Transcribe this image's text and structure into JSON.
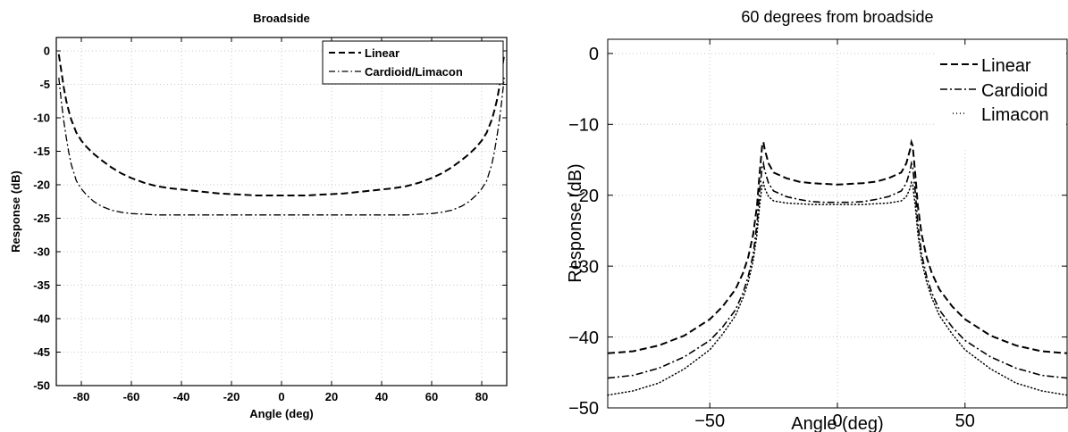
{
  "chart_data": [
    {
      "type": "line",
      "title": "Broadside",
      "xlabel": "Angle (deg)",
      "ylabel": "Response (dB)",
      "xlim": [
        -90,
        90
      ],
      "ylim": [
        -50,
        2
      ],
      "xticks": [
        -80,
        -60,
        -40,
        -20,
        0,
        20,
        40,
        60,
        80
      ],
      "yticks": [
        0,
        -5,
        -10,
        -15,
        -20,
        -25,
        -30,
        -35,
        -40,
        -45,
        -50
      ],
      "grid": true,
      "legend_position": "top-right",
      "x": [
        -89,
        -88,
        -87,
        -86,
        -85,
        -84,
        -82,
        -80,
        -78,
        -75,
        -72,
        -68,
        -64,
        -60,
        -55,
        -50,
        -45,
        -40,
        -35,
        -30,
        -25,
        -20,
        -15,
        -10,
        -5,
        0,
        5,
        10,
        15,
        20,
        25,
        30,
        35,
        40,
        45,
        50,
        55,
        60,
        64,
        68,
        72,
        75,
        78,
        80,
        82,
        84,
        85,
        86,
        87,
        88,
        89
      ],
      "series": [
        {
          "name": "Linear",
          "style": "dashed",
          "values": [
            -0.5,
            -3,
            -5.5,
            -7.5,
            -9,
            -10.3,
            -12.2,
            -13.4,
            -14.3,
            -15.4,
            -16.3,
            -17.4,
            -18.3,
            -19,
            -19.7,
            -20.2,
            -20.5,
            -20.7,
            -20.9,
            -21.1,
            -21.3,
            -21.4,
            -21.5,
            -21.6,
            -21.6,
            -21.6,
            -21.6,
            -21.6,
            -21.5,
            -21.4,
            -21.3,
            -21.1,
            -20.9,
            -20.7,
            -20.5,
            -20.2,
            -19.7,
            -19,
            -18.3,
            -17.4,
            -16.3,
            -15.4,
            -14.3,
            -13.4,
            -12.2,
            -10.3,
            -9,
            -7.5,
            -5.5,
            -3,
            -0.5
          ]
        },
        {
          "name": "Cardioid/Limacon",
          "style": "dashdot",
          "values": [
            -4,
            -7.5,
            -10.5,
            -13,
            -15.2,
            -17,
            -19.4,
            -20.6,
            -21.5,
            -22.5,
            -23.2,
            -23.8,
            -24.1,
            -24.3,
            -24.4,
            -24.5,
            -24.5,
            -24.5,
            -24.5,
            -24.5,
            -24.5,
            -24.5,
            -24.5,
            -24.5,
            -24.5,
            -24.5,
            -24.5,
            -24.5,
            -24.5,
            -24.5,
            -24.5,
            -24.5,
            -24.5,
            -24.5,
            -24.5,
            -24.5,
            -24.4,
            -24.3,
            -24.1,
            -23.8,
            -23.2,
            -22.5,
            -21.5,
            -20.6,
            -19.4,
            -17,
            -15.2,
            -13,
            -10.5,
            -7.5,
            -4
          ]
        }
      ]
    },
    {
      "type": "line",
      "title": "60 degrees from broadside",
      "xlabel": "Angle (deg)",
      "ylabel": "Response (dB)",
      "xlim": [
        -90,
        90
      ],
      "ylim": [
        -50,
        2
      ],
      "xticks": [
        -50,
        0,
        50
      ],
      "yticks": [
        0,
        -10,
        -20,
        -30,
        -40,
        -50
      ],
      "grid": true,
      "legend_position": "top-right",
      "x": [
        -90,
        -80,
        -70,
        -60,
        -50,
        -45,
        -40,
        -37,
        -35,
        -33,
        -31.5,
        -30.5,
        -29.5,
        -29,
        -28.5,
        -27,
        -25,
        -20,
        -15,
        -10,
        -5,
        0,
        5,
        10,
        15,
        20,
        25,
        27,
        28.5,
        29,
        29.5,
        30.5,
        31.5,
        33,
        35,
        37,
        40,
        45,
        50,
        60,
        70,
        80,
        90
      ],
      "series": [
        {
          "name": "Linear",
          "style": "dashed",
          "values": [
            -42.3,
            -42,
            -41.2,
            -39.8,
            -37.5,
            -35.7,
            -33.3,
            -31,
            -28.8,
            -25.5,
            -21.5,
            -17,
            -13,
            -12.5,
            -13.5,
            -15.5,
            -16.8,
            -17.6,
            -18.1,
            -18.3,
            -18.4,
            -18.5,
            -18.4,
            -18.3,
            -18.1,
            -17.6,
            -16.8,
            -15.5,
            -13.5,
            -12.5,
            -13,
            -17,
            -21.5,
            -25.5,
            -28.8,
            -31,
            -33.3,
            -35.7,
            -37.5,
            -39.8,
            -41.2,
            -42,
            -42.3
          ]
        },
        {
          "name": "Cardioid",
          "style": "dashdot",
          "values": [
            -45.8,
            -45.4,
            -44.4,
            -42.8,
            -40.5,
            -38.6,
            -36.2,
            -33.8,
            -31.5,
            -28.3,
            -24,
            -19.5,
            -16,
            -15.5,
            -16.5,
            -18.3,
            -19.4,
            -20.2,
            -20.6,
            -20.9,
            -21,
            -21,
            -21,
            -20.9,
            -20.6,
            -20.2,
            -19.4,
            -18.3,
            -16.5,
            -15.5,
            -16,
            -19.5,
            -24,
            -28.3,
            -31.5,
            -33.8,
            -36.2,
            -38.6,
            -40.5,
            -42.8,
            -44.4,
            -45.4,
            -45.8
          ]
        },
        {
          "name": "Limacon",
          "style": "dotted",
          "values": [
            -48.2,
            -47.6,
            -46.5,
            -44.5,
            -41.8,
            -39.6,
            -37,
            -34.5,
            -32.3,
            -29.2,
            -25.5,
            -21.5,
            -18.5,
            -18.2,
            -19,
            -20.2,
            -20.8,
            -21.1,
            -21.2,
            -21.3,
            -21.3,
            -21.3,
            -21.3,
            -21.3,
            -21.2,
            -21.1,
            -20.8,
            -20.2,
            -19,
            -18.2,
            -18.5,
            -21.5,
            -25.5,
            -29.2,
            -32.3,
            -34.5,
            -37,
            -39.6,
            -41.8,
            -44.5,
            -46.5,
            -47.6,
            -48.2
          ]
        }
      ]
    }
  ]
}
